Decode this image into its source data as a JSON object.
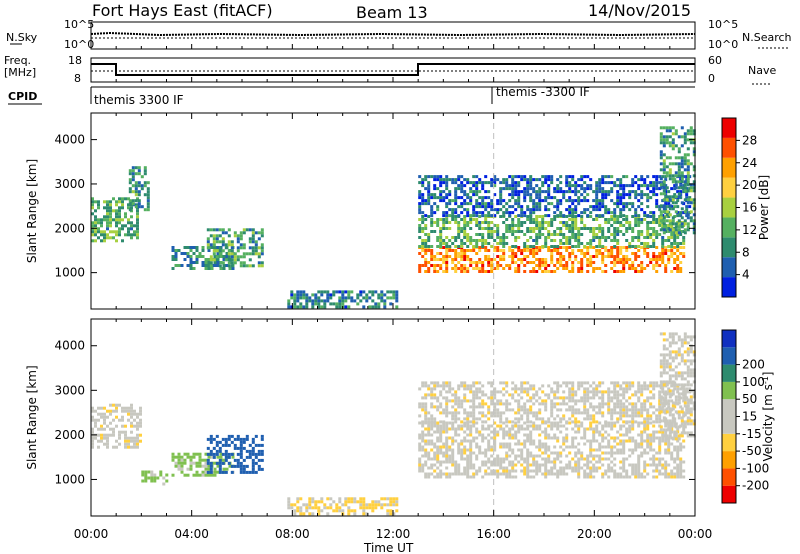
{
  "header": {
    "station": "Fort Hays East (fitACF)",
    "beam": "Beam 13",
    "date": "14/Nov/2015"
  },
  "top_panels": {
    "nsky_label": "N.Sky",
    "nsky_ticks": [
      "10^5",
      "10^0"
    ],
    "nsearch_label": "N.Search",
    "nsearch_ticks": [
      "10^5",
      "10^0"
    ],
    "freq_label": "Freq.",
    "freq_unit": "[MHz]",
    "freq_ticks": [
      "18",
      "8"
    ],
    "nave_label": "Nave",
    "nave_ticks": [
      "60",
      "0"
    ],
    "cpid_label": "CPID",
    "cpid_segments": [
      {
        "label": "themis 3300 IF",
        "start_hour": 0
      },
      {
        "label": "themis -3300 IF",
        "start_hour": 16
      }
    ]
  },
  "colors": {
    "power": [
      "#0020e0",
      "#1f5fb0",
      "#2e8b6e",
      "#55b060",
      "#a8d040",
      "#ffd040",
      "#ffa000",
      "#ff5000",
      "#ee0000"
    ],
    "velocity": [
      "#ee0000",
      "#ff5000",
      "#ffa000",
      "#ffd040",
      "#c8c8c0",
      "#c8c8c0",
      "#80c050",
      "#2e8b6e",
      "#1f5fb0",
      "#1030c0"
    ],
    "ground_scatter": "#c8c8c0"
  },
  "chart_data": [
    {
      "type": "heatmap",
      "name": "power",
      "ylabel": "Slant Range [km]",
      "xlabel": "Time UT",
      "x_ticks": [
        "00:00",
        "04:00",
        "08:00",
        "12:00",
        "16:00",
        "20:00",
        "00:00"
      ],
      "y_ticks": [
        1000,
        2000,
        3000,
        4000
      ],
      "xlim_hours": [
        0,
        24
      ],
      "ylim_km": [
        180,
        4600
      ],
      "colorbar_label": "Power [dB]",
      "colorbar_ticks": [
        4,
        8,
        12,
        16,
        20,
        24,
        28
      ],
      "colorbar_range": [
        0,
        32
      ],
      "regions": [
        {
          "t0": 0.0,
          "t1": 1.9,
          "r0": 1750,
          "r1": 2700,
          "level": 12
        },
        {
          "t0": 1.5,
          "t1": 2.3,
          "r0": 2400,
          "r1": 3400,
          "level": 10
        },
        {
          "t0": 3.2,
          "t1": 5.6,
          "r0": 1100,
          "r1": 1600,
          "level": 9
        },
        {
          "t0": 4.6,
          "t1": 6.8,
          "r0": 1150,
          "r1": 2000,
          "level": 11
        },
        {
          "t0": 7.8,
          "t1": 12.2,
          "r0": 250,
          "r1": 600,
          "level": 8
        },
        {
          "t0": 13.0,
          "t1": 23.6,
          "r0": 1050,
          "r1": 1600,
          "level": 24
        },
        {
          "t0": 13.0,
          "t1": 23.6,
          "r0": 1600,
          "r1": 2300,
          "level": 12
        },
        {
          "t0": 13.0,
          "t1": 23.8,
          "r0": 2300,
          "r1": 3200,
          "level": 6
        },
        {
          "t0": 22.6,
          "t1": 24.0,
          "r0": 1900,
          "r1": 4300,
          "level": 10
        }
      ]
    },
    {
      "type": "heatmap",
      "name": "velocity",
      "ylabel": "Slant Range [km]",
      "xlabel": "Time UT",
      "x_ticks": [
        "00:00",
        "04:00",
        "08:00",
        "12:00",
        "16:00",
        "20:00",
        "00:00"
      ],
      "y_ticks": [
        1000,
        2000,
        3000,
        4000
      ],
      "xlim_hours": [
        0,
        24
      ],
      "ylim_km": [
        180,
        4600
      ],
      "colorbar_label": "Velocity [m s",
      "colorbar_unit_sup": "-1",
      "colorbar_ticks": [
        -200,
        -100,
        -50,
        -15,
        15,
        50,
        100,
        200
      ],
      "regions": [
        {
          "t0": 0.0,
          "t1": 2.0,
          "r0": 1700,
          "r1": 2700,
          "value": 0
        },
        {
          "t0": 2.0,
          "t1": 3.0,
          "r0": 900,
          "r1": 1200,
          "value": 60
        },
        {
          "t0": 3.2,
          "t1": 5.6,
          "r0": 1100,
          "r1": 1600,
          "value": 60
        },
        {
          "t0": 4.6,
          "t1": 6.8,
          "r0": 1150,
          "r1": 2000,
          "value": 220
        },
        {
          "t0": 7.8,
          "t1": 12.2,
          "r0": 250,
          "r1": 600,
          "value": -20
        },
        {
          "t0": 13.0,
          "t1": 23.6,
          "r0": 1050,
          "r1": 2300,
          "value": 0
        },
        {
          "t0": 13.0,
          "t1": 23.8,
          "r0": 2300,
          "r1": 3200,
          "value": 0
        },
        {
          "t0": 22.6,
          "t1": 24.0,
          "r0": 1900,
          "r1": 4300,
          "value": 0
        }
      ]
    }
  ]
}
